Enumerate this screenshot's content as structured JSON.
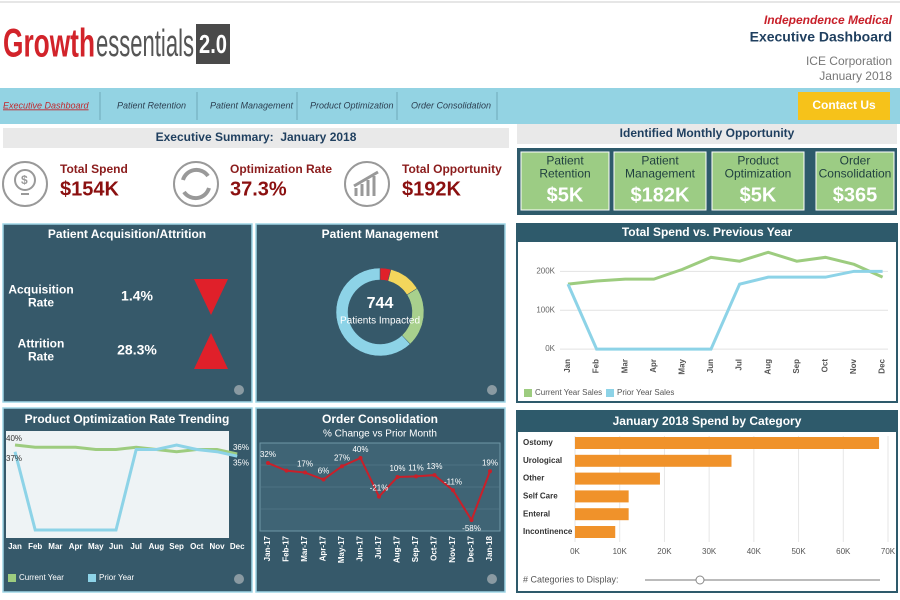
{
  "header": {
    "logo_bold": "Growth",
    "logo_light": "essentials",
    "logo_version": "2.0",
    "company": "Independence Medical",
    "title": "Executive Dashboard",
    "org": "ICE Corporation",
    "date": "January 2018"
  },
  "nav": {
    "tabs": [
      "Executive Dashboard",
      "Patient Retention",
      "Patient Management",
      "Product Optimization",
      "Order Consolidation"
    ],
    "button": "Contact Us"
  },
  "summary": {
    "title": "Executive Summary:  January 2018",
    "kpis": [
      {
        "label": "Total Spend",
        "value": "$154K"
      },
      {
        "label": "Optimization Rate",
        "value": "37.3%"
      },
      {
        "label": "Total Opportunity",
        "value": "$192K"
      }
    ]
  },
  "opportunity": {
    "title": "Identified Monthly Opportunity",
    "items": [
      {
        "label": "Patient Retention",
        "value": "$5K"
      },
      {
        "label": "Patient Management",
        "value": "$182K"
      },
      {
        "label": "Product Optimization",
        "value": "$5K"
      },
      {
        "label": "Order Consolidation",
        "value": "$365"
      }
    ]
  },
  "acquisition": {
    "title": "Patient Acquisition/Attrition",
    "rows": [
      {
        "label": "Acquisition Rate",
        "value": "1.4%",
        "direction": "down"
      },
      {
        "label": "Attrition Rate",
        "value": "28.3%",
        "direction": "up"
      }
    ]
  },
  "patient_management": {
    "title": "Patient Management",
    "value": "744",
    "subtitle": "Patients Impacted",
    "chart": {
      "type": "donut",
      "values": [
        4,
        12,
        22,
        62
      ],
      "colors": [
        "#e0202a",
        "#f3d65c",
        "#a8d08d",
        "#8dd3e7"
      ]
    }
  },
  "product_optimization": {
    "title": "Product Optimization Rate Trending",
    "chart": {
      "type": "line",
      "categories": [
        "Jan",
        "Feb",
        "Mar",
        "Apr",
        "May",
        "Jun",
        "Jul",
        "Aug",
        "Sep",
        "Oct",
        "Nov",
        "Dec"
      ],
      "series": [
        {
          "name": "Current Year",
          "color": "#9dcc7f",
          "values": [
            40,
            39,
            39,
            39,
            38,
            38,
            39,
            38,
            37,
            38,
            38,
            36
          ],
          "value_labels": [
            "40%",
            null,
            null,
            null,
            null,
            null,
            null,
            null,
            null,
            null,
            null,
            "36%"
          ]
        },
        {
          "name": "Prior Year",
          "color": "#8dd3e7",
          "values": [
            37,
            2,
            2,
            2,
            2,
            2,
            38,
            38,
            40,
            38,
            37,
            35
          ],
          "value_labels": [
            "37%",
            null,
            null,
            null,
            null,
            null,
            null,
            null,
            null,
            null,
            null,
            "35%"
          ]
        }
      ]
    }
  },
  "order_consolidation": {
    "title": "Order Consolidation",
    "subtitle": "% Change vs Prior Month",
    "chart": {
      "type": "line",
      "categories": [
        "Jan-17",
        "Feb-17",
        "Mar-17",
        "Apr-17",
        "May-17",
        "Jun-17",
        "Jul-17",
        "Aug-17",
        "Sep-17",
        "Oct-17",
        "Nov-17",
        "Dec-17",
        "Jan-18"
      ],
      "color": "#c8202a",
      "values": [
        32,
        20,
        17,
        6,
        27,
        40,
        -21,
        10,
        11,
        13,
        -11,
        -58,
        19
      ],
      "value_labels": [
        "32%",
        null,
        "17%",
        "6%",
        "27%",
        "40%",
        "-21%",
        "10%",
        "11%",
        "13%",
        "-11%",
        "-58%",
        "19%"
      ]
    }
  },
  "total_spend": {
    "title": "Total Spend vs. Previous Year",
    "chart": {
      "type": "line",
      "categories": [
        "Jan",
        "Feb",
        "Mar",
        "Apr",
        "May",
        "Jun",
        "Jul",
        "Aug",
        "Sep",
        "Oct",
        "Nov",
        "Dec"
      ],
      "ylim": [
        -10000,
        260000
      ],
      "yticks": [
        {
          "value": 0,
          "label": "0K"
        },
        {
          "value": 100000,
          "label": "100K"
        },
        {
          "value": 200000,
          "label": "200K"
        }
      ],
      "grid": true,
      "series": [
        {
          "name": "Current Year Sales",
          "color": "#9dcc7f",
          "values": [
            167000,
            175000,
            180000,
            180000,
            205000,
            236000,
            226000,
            249000,
            226000,
            236000,
            218000,
            185000
          ]
        },
        {
          "name": "Prior Year Sales",
          "color": "#8dd3e7",
          "values": [
            167000,
            0,
            0,
            0,
            0,
            0,
            167000,
            185000,
            185000,
            185000,
            200000,
            200000
          ]
        }
      ]
    }
  },
  "spend_category": {
    "title": "January 2018 Spend by Category",
    "footer": "# Categories to Display:",
    "chart": {
      "type": "hbar",
      "categories": [
        "Ostomy",
        "Urological",
        "Other",
        "Self Care",
        "Enteral",
        "Incontinence"
      ],
      "values": [
        68000,
        35000,
        19000,
        12000,
        12000,
        9000
      ],
      "color": "#f0922a",
      "xlim": [
        0,
        70000
      ],
      "xticks": [
        {
          "value": 0,
          "label": "0K"
        },
        {
          "value": 10000,
          "label": "10K"
        },
        {
          "value": 20000,
          "label": "20K"
        },
        {
          "value": 30000,
          "label": "30K"
        },
        {
          "value": 40000,
          "label": "40K"
        },
        {
          "value": 50000,
          "label": "50K"
        },
        {
          "value": 60000,
          "label": "60K"
        },
        {
          "value": 70000,
          "label": "70K"
        }
      ],
      "grid": true
    }
  }
}
